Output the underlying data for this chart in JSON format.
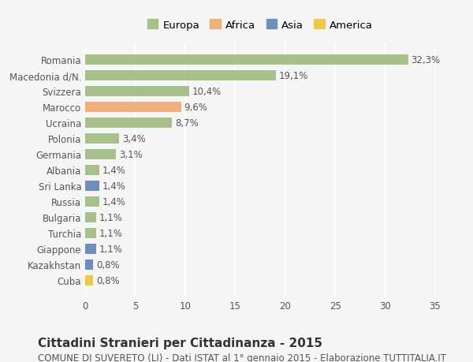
{
  "countries": [
    "Romania",
    "Macedonia d/N.",
    "Svizzera",
    "Marocco",
    "Ucraina",
    "Polonia",
    "Germania",
    "Albania",
    "Sri Lanka",
    "Russia",
    "Bulgaria",
    "Turchia",
    "Giappone",
    "Kazakhstan",
    "Cuba"
  ],
  "values": [
    32.3,
    19.1,
    10.4,
    9.6,
    8.7,
    3.4,
    3.1,
    1.4,
    1.4,
    1.4,
    1.1,
    1.1,
    1.1,
    0.8,
    0.8
  ],
  "labels": [
    "32,3%",
    "19,1%",
    "10,4%",
    "9,6%",
    "8,7%",
    "3,4%",
    "3,1%",
    "1,4%",
    "1,4%",
    "1,4%",
    "1,1%",
    "1,1%",
    "1,1%",
    "0,8%",
    "0,8%"
  ],
  "continents": [
    "Europa",
    "Europa",
    "Europa",
    "Africa",
    "Europa",
    "Europa",
    "Europa",
    "Europa",
    "Asia",
    "Europa",
    "Europa",
    "Europa",
    "Asia",
    "Asia",
    "America"
  ],
  "continent_colors": {
    "Europa": "#a8c08a",
    "Africa": "#f0b07a",
    "Asia": "#6a8fbf",
    "America": "#f0c84a"
  },
  "legend_order": [
    "Europa",
    "Africa",
    "Asia",
    "America"
  ],
  "legend_colors": [
    "#a8c08a",
    "#f0b07a",
    "#6a8fbf",
    "#f0c84a"
  ],
  "xlim": [
    0,
    35
  ],
  "xticks": [
    0,
    5,
    10,
    15,
    20,
    25,
    30,
    35
  ],
  "background_color": "#f5f5f5",
  "grid_color": "#ffffff",
  "bar_height": 0.65,
  "title": "Cittadini Stranieri per Cittadinanza - 2015",
  "subtitle": "COMUNE DI SUVERETO (LI) - Dati ISTAT al 1° gennaio 2015 - Elaborazione TUTTITALIA.IT",
  "title_fontsize": 11,
  "subtitle_fontsize": 8.5,
  "label_fontsize": 8.5,
  "tick_fontsize": 8.5,
  "legend_fontsize": 9.5
}
